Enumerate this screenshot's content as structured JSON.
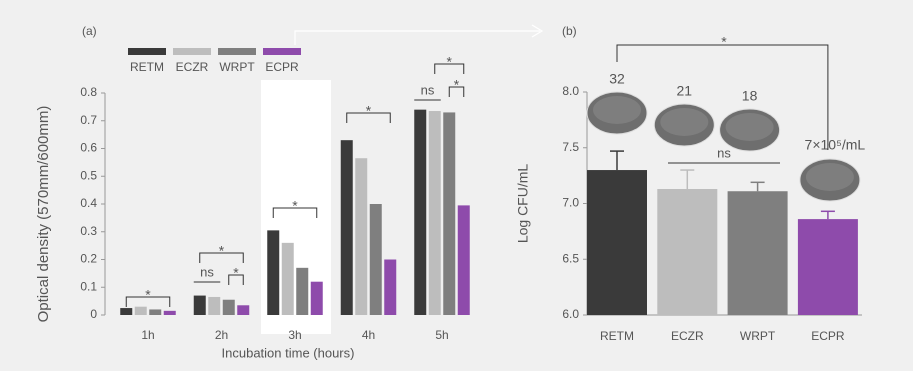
{
  "chart_data": [
    {
      "type": "bar",
      "panel_label": "(a)",
      "x_label": "Incubation time (hours)",
      "y_label": "Optical density (570mm/600mm)",
      "categories": [
        "1h",
        "2h",
        "3h",
        "4h",
        "5h"
      ],
      "series": [
        {
          "name": "RETM",
          "color": "#3a3a3a",
          "values": [
            0.025,
            0.07,
            0.305,
            0.63,
            0.74
          ]
        },
        {
          "name": "ECZR",
          "color": "#bdbdbd",
          "values": [
            0.03,
            0.065,
            0.26,
            0.565,
            0.735
          ]
        },
        {
          "name": "WRPT",
          "color": "#7f7f7f",
          "values": [
            0.02,
            0.055,
            0.17,
            0.4,
            0.73
          ]
        },
        {
          "name": "ECPR",
          "color": "#8e4bab",
          "values": [
            0.015,
            0.035,
            0.12,
            0.2,
            0.395
          ]
        }
      ],
      "ylim": [
        0,
        0.8
      ],
      "yticks": [
        0,
        0.1,
        0.2,
        0.3,
        0.4,
        0.5,
        0.6,
        0.7,
        0.8
      ],
      "annotations": [
        "*",
        "ns",
        "*",
        "*",
        "*",
        "*",
        "ns",
        "*",
        "*"
      ]
    },
    {
      "type": "errorbar",
      "panel_label": "(b)",
      "y_label": "Log CFU/mL",
      "categories": [
        "RETM",
        "ECZR",
        "WRPT",
        "ECPR"
      ],
      "values": [
        7.3,
        7.13,
        7.11,
        6.86
      ],
      "errors": [
        0.17,
        0.17,
        0.08,
        0.07
      ],
      "colors": [
        "#3a3a3a",
        "#bdbdbd",
        "#7f7f7f",
        "#8e4bab"
      ],
      "count_labels": [
        "32",
        "21",
        "18",
        "7×10⁵/mL"
      ],
      "ylim": [
        6,
        8
      ],
      "yticks": [
        {
          "value": 6,
          "label": "6.0"
        },
        {
          "value": 6.5,
          "label": "6.5"
        },
        {
          "value": 7,
          "label": "7.0"
        },
        {
          "value": 7.5,
          "label": "7.5"
        },
        {
          "value": 8,
          "label": "8.0"
        }
      ],
      "annotations": [
        "*",
        "ns"
      ]
    }
  ]
}
